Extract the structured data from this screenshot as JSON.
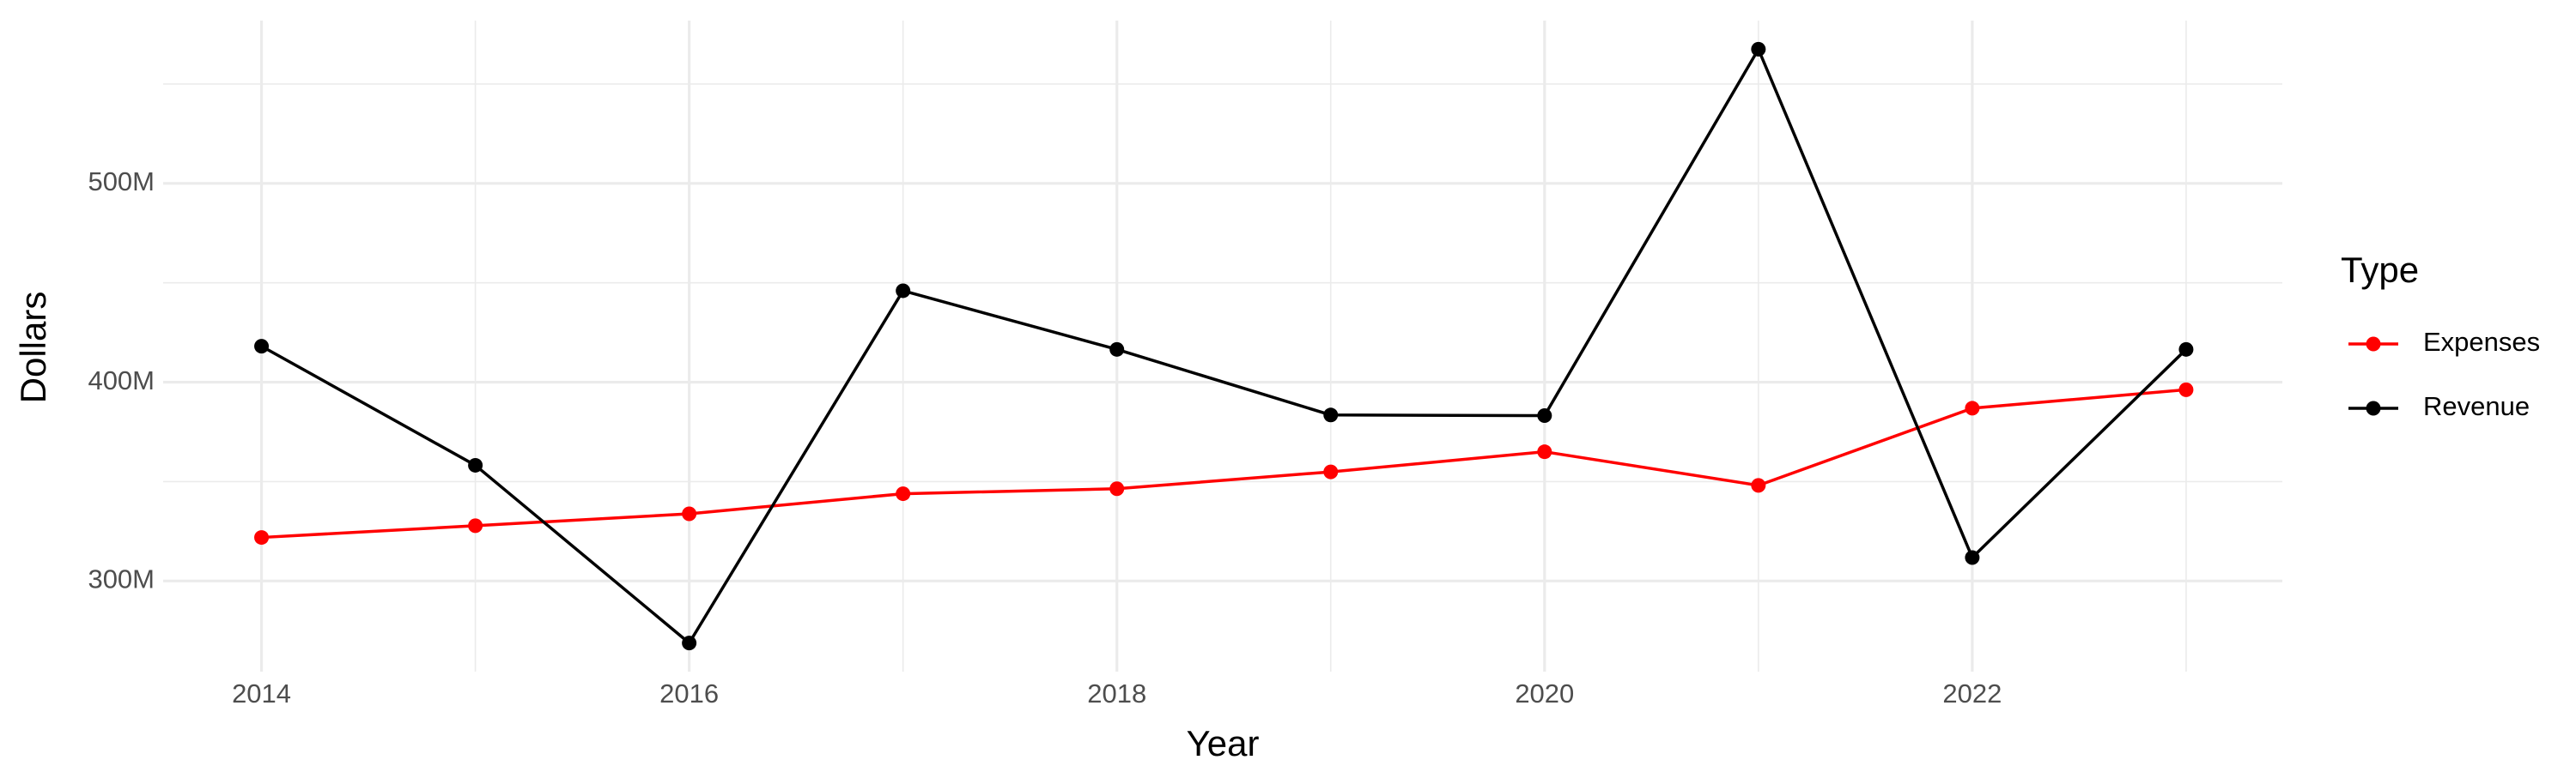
{
  "chart_data": {
    "type": "line",
    "x_label": "Year",
    "y_label": "Dollars",
    "legend_title": "Type",
    "legend_position": "right",
    "x": [
      2014,
      2015,
      2016,
      2017,
      2018,
      2019,
      2020,
      2021,
      2022,
      2023
    ],
    "series": [
      {
        "name": "Expenses",
        "color": "#ff0000",
        "values": [
          321900000,
          327800000,
          333800000,
          343900000,
          346400000,
          354900000,
          365000000,
          348100000,
          386900000,
          396200000
        ]
      },
      {
        "name": "Revenue",
        "color": "#000000",
        "values": [
          418100000,
          358200000,
          268800000,
          446000000,
          416500000,
          383500000,
          383200000,
          567500000,
          311800000,
          416500000
        ]
      }
    ],
    "xlim": [
      2013.54,
      2023.45
    ],
    "xticks": [
      2014,
      2016,
      2018,
      2020,
      2022
    ],
    "minor_xticks": [
      2015,
      2017,
      2019,
      2021,
      2023
    ],
    "ylim": [
      254400000,
      581900000
    ],
    "yticks": [
      {
        "value": 300000000,
        "label": "300M"
      },
      {
        "value": 400000000,
        "label": "400M"
      },
      {
        "value": 500000000,
        "label": "500M"
      }
    ],
    "minor_yticks": [
      350000000,
      450000000,
      550000000
    ],
    "grid": true
  }
}
